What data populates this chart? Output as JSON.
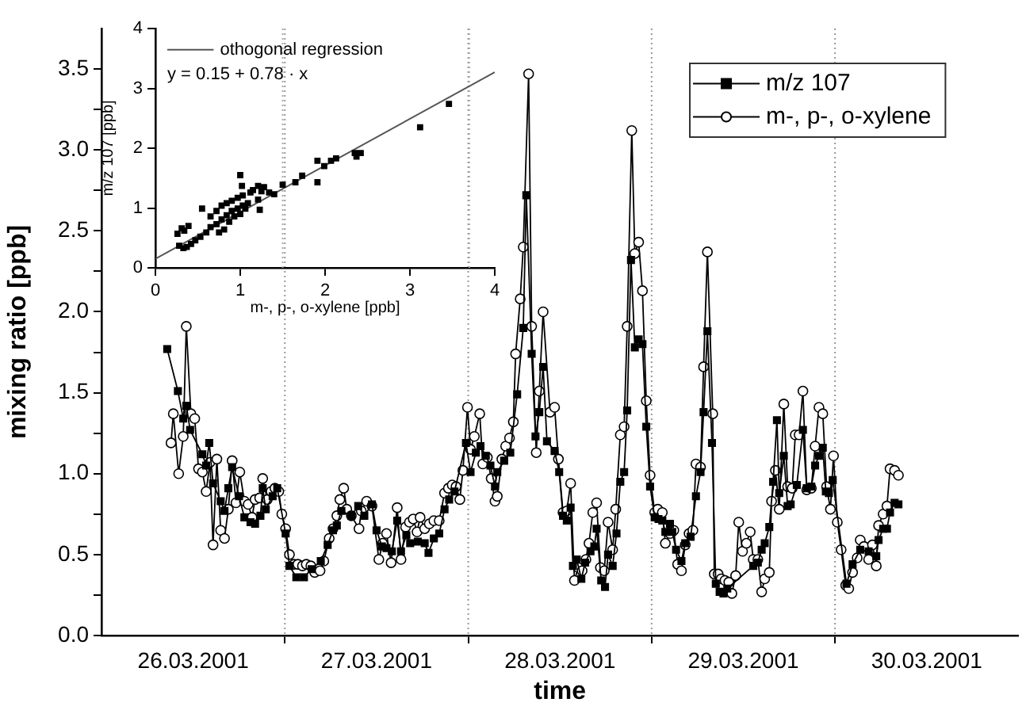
{
  "chart_data": [
    {
      "type": "line",
      "xlabel": "time",
      "ylabel": "mixing ratio [ppb]",
      "legend": "top right",
      "xlim": [
        "2001-03-26T00:00",
        "2001-03-31T00:00"
      ],
      "xticks": [
        {
          "value": "2001-03-26T12:00",
          "label": "26.03.2001"
        },
        {
          "value": "2001-03-27T00:00",
          "label": null
        },
        {
          "value": "2001-03-27T12:00",
          "label": "27.03.2001"
        },
        {
          "value": "2001-03-28T00:00",
          "label": null
        },
        {
          "value": "2001-03-28T12:00",
          "label": "28.03.2001"
        },
        {
          "value": "2001-03-29T00:00",
          "label": null
        },
        {
          "value": "2001-03-29T12:00",
          "label": "29.03.2001"
        },
        {
          "value": "2001-03-30T00:00",
          "label": null
        },
        {
          "value": "2001-03-30T12:00",
          "label": "30.03.2001"
        }
      ],
      "ylim": [
        0,
        3.75
      ],
      "yticks": [
        {
          "value": 0,
          "label": "0.0"
        },
        {
          "value": 0.25,
          "label": null
        },
        {
          "value": 0.5,
          "label": "0.5"
        },
        {
          "value": 0.75,
          "label": null
        },
        {
          "value": 1,
          "label": "1.0"
        },
        {
          "value": 1.25,
          "label": null
        },
        {
          "value": 1.5,
          "label": "1.5"
        },
        {
          "value": 1.75,
          "label": null
        },
        {
          "value": 2,
          "label": "2.0"
        },
        {
          "value": 2.25,
          "label": null
        },
        {
          "value": 2.5,
          "label": "2.5"
        },
        {
          "value": 2.75,
          "label": null
        },
        {
          "value": 3,
          "label": "3.0"
        },
        {
          "value": 3.25,
          "label": null
        },
        {
          "value": 3.5,
          "label": "3.5"
        }
      ],
      "ref_lines": [
        {
          "axis": "x",
          "value": "2001-03-27T00:00",
          "color": "#999999",
          "line_style": "dotted"
        },
        {
          "axis": "x",
          "value": "2001-03-28T00:00",
          "color": "#999999",
          "line_style": "dotted"
        },
        {
          "axis": "x",
          "value": "2001-03-29T00:00",
          "color": "#999999",
          "line_style": "dotted"
        },
        {
          "axis": "x",
          "value": "2001-03-30T00:00",
          "color": "#999999",
          "line_style": "dotted"
        }
      ],
      "series": [
        {
          "name": "m/z 107",
          "color": "#000000",
          "marker": "square",
          "x": [
            "2001-03-26T08:36",
            "2001-03-26T10:00",
            "2001-03-26T10:42",
            "2001-03-26T11:06",
            "2001-03-26T11:36",
            "2001-03-26T13:12",
            "2001-03-26T13:42",
            "2001-03-26T14:06",
            "2001-03-26T14:36",
            "2001-03-26T15:36",
            "2001-03-26T16:06",
            "2001-03-26T16:36",
            "2001-03-26T17:06",
            "2001-03-26T18:00",
            "2001-03-26T18:42",
            "2001-03-26T19:30",
            "2001-03-26T20:06",
            "2001-03-26T20:48",
            "2001-03-26T21:06",
            "2001-03-26T21:30",
            "2001-03-26T22:24",
            "2001-03-26T23:00",
            "2001-03-27T00:06",
            "2001-03-27T00:36",
            "2001-03-27T01:30",
            "2001-03-27T02:30",
            "2001-03-27T03:30",
            "2001-03-27T04:42",
            "2001-03-27T05:36",
            "2001-03-27T06:18",
            "2001-03-27T06:48",
            "2001-03-27T07:24",
            "2001-03-27T08:42",
            "2001-03-27T09:36",
            "2001-03-27T10:24",
            "2001-03-27T11:24",
            "2001-03-27T12:00",
            "2001-03-27T12:42",
            "2001-03-27T13:18",
            "2001-03-27T14:00",
            "2001-03-27T14:42",
            "2001-03-27T15:12",
            "2001-03-27T15:54",
            "2001-03-27T16:24",
            "2001-03-27T17:24",
            "2001-03-27T18:18",
            "2001-03-27T18:48",
            "2001-03-27T19:30",
            "2001-03-27T20:12",
            "2001-03-27T20:54",
            "2001-03-27T21:30",
            "2001-03-27T22:12",
            "2001-03-27T23:42",
            "2001-03-28T00:18",
            "2001-03-28T01:00",
            "2001-03-28T01:36",
            "2001-03-28T02:18",
            "2001-03-28T02:54",
            "2001-03-28T03:30",
            "2001-03-28T03:48",
            "2001-03-28T04:42",
            "2001-03-28T05:30",
            "2001-03-28T06:24",
            "2001-03-28T07:12",
            "2001-03-28T07:36",
            "2001-03-28T08:18",
            "2001-03-28T08:48",
            "2001-03-28T09:18",
            "2001-03-28T09:48",
            "2001-03-28T10:18",
            "2001-03-28T11:18",
            "2001-03-28T11:54",
            "2001-03-28T12:24",
            "2001-03-28T12:54",
            "2001-03-28T13:24",
            "2001-03-28T13:42",
            "2001-03-28T14:12",
            "2001-03-28T14:48",
            "2001-03-28T15:18",
            "2001-03-28T16:00",
            "2001-03-28T16:30",
            "2001-03-28T16:48",
            "2001-03-28T17:24",
            "2001-03-28T17:54",
            "2001-03-28T18:18",
            "2001-03-28T18:54",
            "2001-03-28T19:24",
            "2001-03-28T19:54",
            "2001-03-28T20:24",
            "2001-03-28T20:48",
            "2001-03-28T21:18",
            "2001-03-28T21:48",
            "2001-03-28T22:18",
            "2001-03-28T22:48",
            "2001-03-28T23:18",
            "2001-03-28T23:48",
            "2001-03-29T00:24",
            "2001-03-29T00:54",
            "2001-03-29T01:24",
            "2001-03-29T01:48",
            "2001-03-29T02:24",
            "2001-03-29T02:42",
            "2001-03-29T03:12",
            "2001-03-29T03:54",
            "2001-03-29T04:24",
            "2001-03-29T05:06",
            "2001-03-29T05:48",
            "2001-03-29T06:24",
            "2001-03-29T06:48",
            "2001-03-29T07:18",
            "2001-03-29T07:54",
            "2001-03-29T08:24",
            "2001-03-29T08:54",
            "2001-03-29T09:24",
            "2001-03-29T09:54",
            "2001-03-29T13:18",
            "2001-03-29T13:54",
            "2001-03-29T14:24",
            "2001-03-29T14:48",
            "2001-03-29T15:24",
            "2001-03-29T15:54",
            "2001-03-29T16:24",
            "2001-03-29T16:42",
            "2001-03-29T17:18",
            "2001-03-29T17:48",
            "2001-03-29T18:12",
            "2001-03-29T19:00",
            "2001-03-29T19:48",
            "2001-03-29T20:18",
            "2001-03-29T20:54",
            "2001-03-29T21:24",
            "2001-03-29T21:54",
            "2001-03-29T22:24",
            "2001-03-29T22:48",
            "2001-03-29T23:12",
            "2001-03-29T23:42",
            "2001-03-30T01:30",
            "2001-03-30T02:18",
            "2001-03-30T03:18",
            "2001-03-30T04:24",
            "2001-03-30T05:24",
            "2001-03-30T05:42",
            "2001-03-30T06:18",
            "2001-03-30T06:48",
            "2001-03-30T07:12",
            "2001-03-30T07:48",
            "2001-03-30T08:18"
          ],
          "values": [
            1.77,
            1.51,
            1.34,
            1.42,
            1.27,
            1.12,
            1.05,
            1.19,
            0.94,
            0.83,
            0.77,
            0.91,
            1.04,
            0.86,
            0.73,
            0.7,
            0.69,
            0.74,
            0.91,
            0.78,
            0.86,
            0.91,
            0.63,
            0.43,
            0.36,
            0.36,
            0.41,
            0.46,
            0.56,
            0.65,
            0.68,
            0.77,
            0.74,
            0.8,
            0.74,
            0.81,
            0.65,
            0.55,
            0.54,
            0.52,
            0.71,
            0.52,
            0.62,
            0.57,
            0.58,
            0.57,
            0.51,
            0.6,
            0.63,
            0.78,
            0.84,
            0.89,
            1.19,
            1.01,
            1.13,
            1.17,
            1.11,
            1.05,
            0.92,
            1.01,
            1.08,
            1.13,
            1.49,
            1.9,
            2.72,
            1.74,
            1.23,
            1.38,
            1.66,
            1.2,
            1.14,
            1.01,
            0.74,
            0.71,
            0.79,
            0.43,
            0.47,
            0.35,
            0.45,
            0.52,
            0.55,
            0.66,
            0.34,
            0.3,
            0.5,
            0.43,
            0.63,
            0.95,
            1.01,
            1.39,
            2.32,
            1.78,
            1.83,
            1.8,
            1.29,
            0.92,
            0.73,
            0.72,
            0.71,
            0.64,
            0.69,
            0.64,
            0.53,
            0.46,
            0.57,
            0.61,
            0.86,
            1.01,
            1.38,
            1.88,
            1.19,
            0.32,
            0.27,
            0.26,
            0.29,
            0.43,
            0.45,
            0.53,
            0.57,
            0.67,
            0.95,
            1.33,
            0.88,
            1.11,
            0.8,
            0.81,
            0.93,
            1.27,
            0.91,
            0.92,
            1.05,
            1.11,
            1.16,
            0.89,
            0.88,
            0.96,
            0.32,
            0.44,
            0.53,
            0.52,
            0.49,
            0.59,
            0.66,
            0.66,
            0.76,
            0.82,
            0.81
          ]
        },
        {
          "name": "m-, p-, o-xylene",
          "color": "#000000",
          "marker": "circle",
          "x": [
            "2001-03-26T09:06",
            "2001-03-26T09:24",
            "2001-03-26T10:06",
            "2001-03-26T10:42",
            "2001-03-26T11:06",
            "2001-03-26T11:42",
            "2001-03-26T12:12",
            "2001-03-26T12:42",
            "2001-03-26T13:12",
            "2001-03-26T13:42",
            "2001-03-26T14:12",
            "2001-03-26T14:36",
            "2001-03-26T15:06",
            "2001-03-26T15:36",
            "2001-03-26T16:06",
            "2001-03-26T16:36",
            "2001-03-26T17:06",
            "2001-03-26T17:36",
            "2001-03-26T18:06",
            "2001-03-26T18:42",
            "2001-03-26T19:12",
            "2001-03-26T19:42",
            "2001-03-26T20:06",
            "2001-03-26T20:42",
            "2001-03-26T21:06",
            "2001-03-26T21:42",
            "2001-03-26T22:12",
            "2001-03-26T22:42",
            "2001-03-26T23:12",
            "2001-03-26T23:36",
            "2001-03-27T00:06",
            "2001-03-27T00:36",
            "2001-03-27T01:12",
            "2001-03-27T01:42",
            "2001-03-27T02:18",
            "2001-03-27T02:48",
            "2001-03-27T03:24",
            "2001-03-27T03:54",
            "2001-03-27T04:36",
            "2001-03-27T05:06",
            "2001-03-27T05:48",
            "2001-03-27T06:18",
            "2001-03-27T06:48",
            "2001-03-27T07:12",
            "2001-03-27T07:42",
            "2001-03-27T08:06",
            "2001-03-27T08:42",
            "2001-03-27T09:42",
            "2001-03-27T10:00",
            "2001-03-27T10:42",
            "2001-03-27T11:24",
            "2001-03-27T12:18",
            "2001-03-27T12:48",
            "2001-03-27T13:18",
            "2001-03-27T13:54",
            "2001-03-27T14:42",
            "2001-03-27T15:12",
            "2001-03-27T15:48",
            "2001-03-27T16:18",
            "2001-03-27T16:48",
            "2001-03-27T17:18",
            "2001-03-27T17:42",
            "2001-03-27T18:18",
            "2001-03-27T18:54",
            "2001-03-27T19:30",
            "2001-03-27T20:12",
            "2001-03-27T20:54",
            "2001-03-27T21:24",
            "2001-03-27T21:54",
            "2001-03-27T22:24",
            "2001-03-27T22:54",
            "2001-03-27T23:18",
            "2001-03-27T23:54",
            "2001-03-28T00:18",
            "2001-03-28T00:48",
            "2001-03-28T01:30",
            "2001-03-28T01:54",
            "2001-03-28T02:30",
            "2001-03-28T03:00",
            "2001-03-28T03:30",
            "2001-03-28T03:48",
            "2001-03-28T04:24",
            "2001-03-28T04:54",
            "2001-03-28T05:24",
            "2001-03-28T05:54",
            "2001-03-28T06:12",
            "2001-03-28T06:48",
            "2001-03-28T07:12",
            "2001-03-28T07:54",
            "2001-03-28T08:18",
            "2001-03-28T08:54",
            "2001-03-28T09:18",
            "2001-03-28T09:48",
            "2001-03-28T10:42",
            "2001-03-28T11:18",
            "2001-03-28T11:48",
            "2001-03-28T12:24",
            "2001-03-28T12:54",
            "2001-03-28T13:24",
            "2001-03-28T13:54",
            "2001-03-28T14:24",
            "2001-03-28T14:54",
            "2001-03-28T15:24",
            "2001-03-28T15:48",
            "2001-03-28T16:18",
            "2001-03-28T16:48",
            "2001-03-28T17:18",
            "2001-03-28T17:48",
            "2001-03-28T18:18",
            "2001-03-28T18:54",
            "2001-03-28T19:18",
            "2001-03-28T19:54",
            "2001-03-28T20:24",
            "2001-03-28T20:48",
            "2001-03-28T21:24",
            "2001-03-28T21:48",
            "2001-03-28T22:18",
            "2001-03-28T22:48",
            "2001-03-28T23:18",
            "2001-03-28T23:48",
            "2001-03-29T00:24",
            "2001-03-29T00:48",
            "2001-03-29T01:24",
            "2001-03-29T01:48",
            "2001-03-29T02:24",
            "2001-03-29T02:54",
            "2001-03-29T03:24",
            "2001-03-29T03:54",
            "2001-03-29T04:24",
            "2001-03-29T04:54",
            "2001-03-29T05:24",
            "2001-03-29T05:48",
            "2001-03-29T06:24",
            "2001-03-29T06:48",
            "2001-03-29T07:18",
            "2001-03-29T08:00",
            "2001-03-29T08:12",
            "2001-03-29T08:42",
            "2001-03-29T09:06",
            "2001-03-29T09:36",
            "2001-03-29T10:06",
            "2001-03-29T10:30",
            "2001-03-29T11:00",
            "2001-03-29T11:24",
            "2001-03-29T11:54",
            "2001-03-29T12:24",
            "2001-03-29T12:54",
            "2001-03-29T13:18",
            "2001-03-29T13:54",
            "2001-03-29T14:24",
            "2001-03-29T14:48",
            "2001-03-29T15:24",
            "2001-03-29T15:42",
            "2001-03-29T16:12",
            "2001-03-29T16:42",
            "2001-03-29T17:18",
            "2001-03-29T17:48",
            "2001-03-29T18:24",
            "2001-03-29T18:48",
            "2001-03-29T19:18",
            "2001-03-29T19:48",
            "2001-03-29T20:18",
            "2001-03-29T20:54",
            "2001-03-29T21:24",
            "2001-03-29T21:54",
            "2001-03-29T22:24",
            "2001-03-29T22:54",
            "2001-03-29T23:24",
            "2001-03-29T23:48",
            "2001-03-30T00:18",
            "2001-03-30T00:48",
            "2001-03-30T01:24",
            "2001-03-30T01:48",
            "2001-03-30T02:18",
            "2001-03-30T02:54",
            "2001-03-30T03:18",
            "2001-03-30T03:48",
            "2001-03-30T04:24",
            "2001-03-30T04:54",
            "2001-03-30T05:24",
            "2001-03-30T05:42",
            "2001-03-30T06:18",
            "2001-03-30T06:48",
            "2001-03-30T07:12",
            "2001-03-30T07:48",
            "2001-03-30T08:18"
          ],
          "values": [
            1.19,
            1.37,
            1.0,
            1.23,
            1.91,
            1.37,
            1.34,
            1.03,
            1.01,
            0.89,
            1.07,
            0.56,
            1.09,
            0.65,
            0.6,
            0.78,
            1.08,
            0.82,
            1.01,
            0.83,
            0.81,
            0.73,
            0.84,
            0.85,
            0.97,
            0.84,
            0.89,
            0.91,
            0.89,
            0.75,
            0.66,
            0.5,
            0.44,
            0.44,
            0.43,
            0.44,
            0.43,
            0.39,
            0.4,
            0.46,
            0.6,
            0.66,
            0.74,
            0.84,
            0.91,
            0.78,
            0.74,
            0.66,
            0.77,
            0.83,
            0.8,
            0.47,
            0.57,
            0.63,
            0.45,
            0.79,
            0.47,
            0.67,
            0.7,
            0.72,
            0.64,
            0.73,
            0.66,
            0.69,
            0.71,
            0.71,
            0.88,
            0.91,
            0.93,
            0.92,
            0.84,
            1.02,
            1.41,
            1.15,
            1.23,
            1.37,
            1.06,
            1.1,
            0.97,
            0.83,
            0.86,
            1.09,
            1.17,
            1.22,
            1.32,
            1.74,
            2.08,
            2.4,
            3.47,
            1.91,
            1.13,
            1.51,
            2.0,
            1.38,
            1.41,
            1.09,
            0.76,
            0.77,
            0.94,
            0.34,
            0.42,
            0.4,
            0.47,
            0.57,
            0.76,
            0.82,
            0.42,
            0.4,
            0.7,
            0.53,
            0.78,
            1.24,
            1.29,
            1.91,
            3.12,
            2.36,
            2.43,
            2.13,
            1.45,
            0.99,
            0.76,
            0.78,
            0.76,
            0.57,
            0.63,
            0.65,
            0.44,
            0.4,
            0.56,
            0.63,
            0.65,
            1.06,
            1.04,
            1.66,
            2.37,
            1.37,
            0.38,
            0.38,
            0.35,
            0.34,
            0.33,
            0.26,
            0.37,
            0.7,
            0.52,
            0.57,
            0.64,
            0.47,
            0.47,
            0.27,
            0.35,
            0.39,
            0.83,
            1.02,
            0.78,
            1.43,
            0.92,
            0.91,
            1.24,
            1.24,
            1.51,
            0.9,
            0.91,
            1.17,
            1.41,
            1.37,
            0.92,
            0.78,
            1.11,
            0.7,
            0.53,
            0.31,
            0.29,
            0.39,
            0.48,
            0.59,
            0.55,
            0.47,
            0.56,
            0.43,
            0.68,
            0.75,
            0.8,
            1.03,
            1.02,
            0.99
          ]
        }
      ]
    },
    {
      "type": "scatter",
      "xlabel": "m-, p-, o-xylene [ppb]",
      "ylabel": "m/z 107 [ppb]",
      "legend": "top left",
      "annotations": [
        "y = 0.15 + 0.78 · x"
      ],
      "xlim": [
        0,
        4
      ],
      "xticks": [
        0,
        1,
        2,
        3,
        4
      ],
      "ylim": [
        0,
        4
      ],
      "yticks": [
        0,
        1,
        2,
        3,
        4
      ],
      "ref_lines": [
        {
          "axis": "x",
          "value": 1.5,
          "color": "#aaaaaa",
          "line_style": "dotted"
        },
        {
          "axis": "x",
          "value": 3.7,
          "color": "#aaaaaa",
          "line_style": "dotted"
        }
      ],
      "series": [
        {
          "color": "#000000",
          "marker": "square",
          "x": [
            0.28,
            0.33,
            0.37,
            0.42,
            0.47,
            0.53,
            0.6,
            0.65,
            0.72,
            0.78,
            0.84,
            0.9,
            0.97,
            1.03,
            1.09,
            0.75,
            0.81,
            0.87,
            0.93,
            1.0,
            1.06,
            0.65,
            0.72,
            0.78,
            0.84,
            0.9,
            0.97,
            1.03,
            1.12,
            1.21,
            1.15,
            1.28,
            1.34,
            1.4,
            1.5,
            1.23,
            1.0,
            1.02,
            1.21,
            1.25,
            0.55,
            0.39,
            0.26,
            0.31,
            0.34,
            1.65,
            1.73,
            1.91,
            1.91,
            1.99,
            2.07,
            2.13,
            2.35,
            2.37,
            2.42,
            3.12,
            3.46
          ],
          "values": [
            0.37,
            0.33,
            0.35,
            0.4,
            0.46,
            0.52,
            0.59,
            0.68,
            0.73,
            0.81,
            0.88,
            0.95,
            0.99,
            1.04,
            1.08,
            0.59,
            0.64,
            0.77,
            0.86,
            0.9,
            0.99,
            0.86,
            0.95,
            1.04,
            1.08,
            1.12,
            1.17,
            1.21,
            1.26,
            1.14,
            1.3,
            1.35,
            1.26,
            1.23,
            1.39,
            0.97,
            1.55,
            1.37,
            1.37,
            1.28,
            0.99,
            0.7,
            0.57,
            0.66,
            0.62,
            1.43,
            1.54,
            1.79,
            1.43,
            1.7,
            1.79,
            1.83,
            1.92,
            1.86,
            1.92,
            2.35,
            2.74
          ]
        },
        {
          "type": "line",
          "name": "othogonal regression",
          "color": "#555555",
          "marker": "none",
          "x": [
            0,
            4
          ],
          "values": [
            0.15,
            3.27
          ]
        }
      ]
    }
  ]
}
